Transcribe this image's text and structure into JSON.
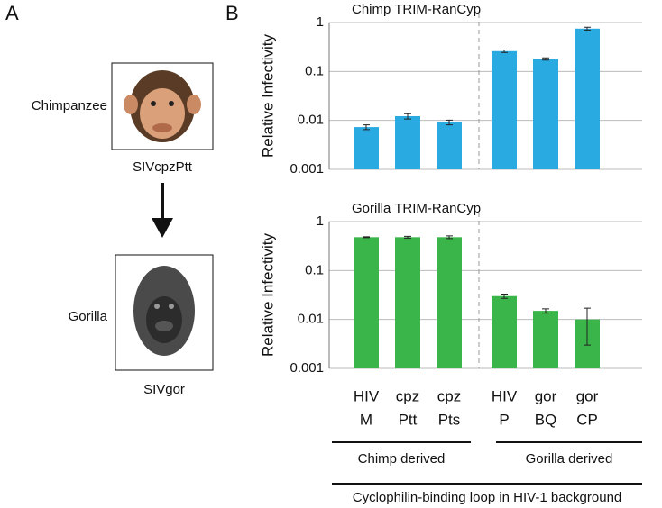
{
  "panel_a": {
    "label": "A",
    "species_1": "Chimpanzee",
    "virus_1": "SIVcpzPtt",
    "species_2": "Gorilla",
    "virus_2": "SIVgor"
  },
  "panel_b": {
    "label": "B"
  },
  "chart_data": [
    {
      "type": "bar",
      "title": "Chimp TRIM-RanCyp",
      "ylabel": "Relative Infectivity",
      "log_scale": true,
      "grid": true,
      "color": "#29abe2",
      "categories": [
        null,
        null,
        null,
        null,
        null,
        null
      ],
      "values": [
        0.0073,
        0.0122,
        0.0091,
        0.26,
        0.18,
        0.75
      ],
      "errors": [
        0.0008,
        0.0015,
        0.001,
        0.015,
        0.01,
        0.05
      ],
      "ylim": [
        0.001,
        1
      ],
      "yticks": [
        0.001,
        0.01,
        0.1,
        1
      ]
    },
    {
      "type": "bar",
      "title": "Gorilla TRIM-RanCyp",
      "ylabel": "Relative Infectivity",
      "log_scale": true,
      "grid": true,
      "color": "#39b54a",
      "categories": [
        [
          "HIV",
          "M"
        ],
        [
          "cpz",
          "Ptt"
        ],
        [
          "cpz",
          "Pts"
        ],
        [
          "HIV",
          "P"
        ],
        [
          "gor",
          "BQ"
        ],
        [
          "gor",
          "CP"
        ]
      ],
      "values": [
        0.48,
        0.48,
        0.48,
        0.03,
        0.015,
        0.01
      ],
      "errors": [
        0.01,
        0.02,
        0.03,
        0.003,
        0.0015,
        0.007
      ],
      "ylim": [
        0.001,
        1
      ],
      "yticks": [
        0.001,
        0.01,
        0.1,
        1
      ],
      "groups": [
        "Chimp derived",
        "Gorilla derived"
      ],
      "xlabel": "Cyclophilin-binding loop in HIV-1 background"
    }
  ]
}
